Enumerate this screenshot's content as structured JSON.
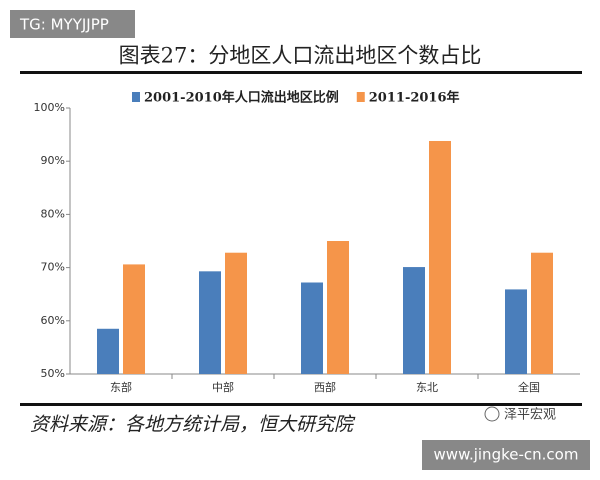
{
  "chart_data": {
    "type": "bar",
    "title": "图表27：分地区人口流出地区个数占比",
    "categories": [
      "东部",
      "中部",
      "西部",
      "东北",
      "全国"
    ],
    "series": [
      {
        "name": "2001-2010年人口流出地区比例",
        "color": "#4a7ebb",
        "values": [
          58.5,
          69.3,
          67.2,
          70.1,
          65.9
        ]
      },
      {
        "name": "2011-2016年",
        "color": "#f5954a",
        "values": [
          70.6,
          72.8,
          75.0,
          93.8,
          72.8
        ]
      }
    ],
    "ylim": [
      50,
      100
    ],
    "yticks": [
      {
        "value": 50,
        "label": "50%"
      },
      {
        "value": 60,
        "label": "60%"
      },
      {
        "value": 70,
        "label": "70%"
      },
      {
        "value": 80,
        "label": "80%"
      },
      {
        "value": 90,
        "label": "90%"
      },
      {
        "value": 100,
        "label": "100%"
      }
    ],
    "grid": false,
    "legend": "top"
  },
  "watermark": "TG: MYYJJPP",
  "source": "资料来源：各地方统计局，恒大研究院",
  "logo": "泽平宏观",
  "site": "www.jingke-cn.com"
}
